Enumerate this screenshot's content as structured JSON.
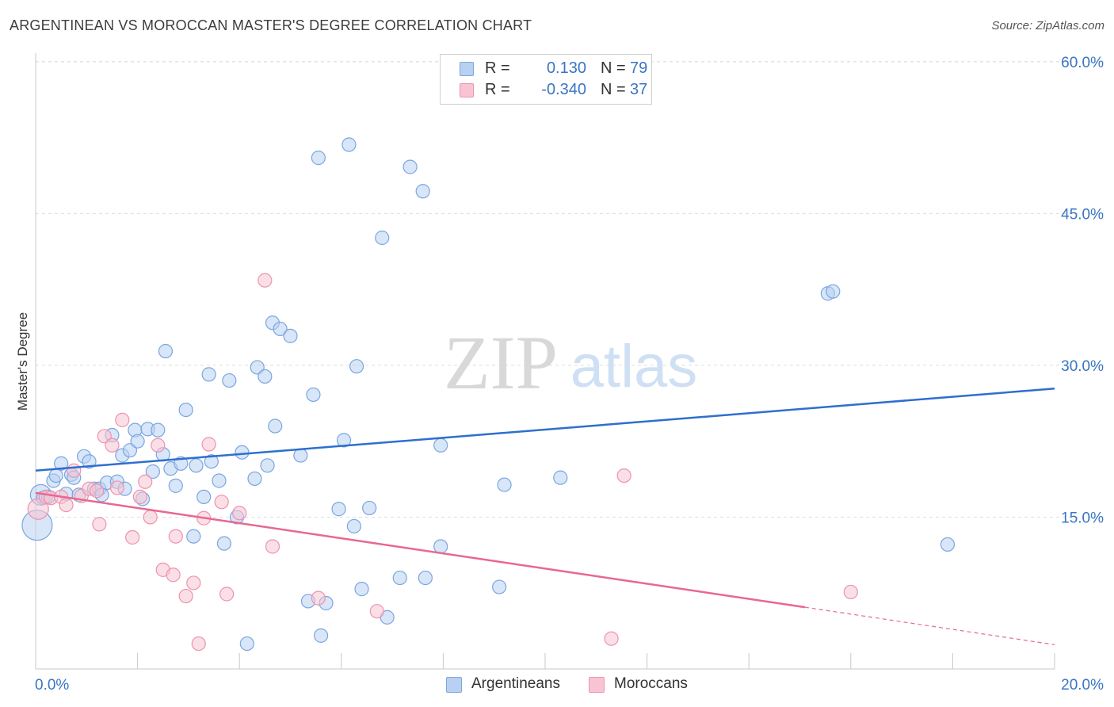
{
  "title": "ARGENTINEAN VS MOROCCAN MASTER'S DEGREE CORRELATION CHART",
  "source": "Source: ZipAtlas.com",
  "watermark": {
    "zip": "ZIP",
    "atlas": "atlas"
  },
  "legend": {
    "series1": {
      "r_label": "R =",
      "r_value": "0.130",
      "n_label": "N =",
      "n_value": "79"
    },
    "series2": {
      "r_label": "R =",
      "r_value": "-0.340",
      "n_label": "N =",
      "n_value": "37"
    }
  },
  "bottom_legend": {
    "series1": "Argentineans",
    "series2": "Moroccans"
  },
  "colors": {
    "blue_fill": "#b8d1f2",
    "blue_stroke": "#7aa6e0",
    "blue_line": "#2e6fce",
    "pink_fill": "#f8c4d4",
    "pink_stroke": "#ee92ae",
    "pink_line": "#e8688f",
    "axis_label": "#3a75c4",
    "grid": "#dedede"
  },
  "chart_data": {
    "type": "scatter",
    "title": "ARGENTINEAN VS MOROCCAN MASTER'S DEGREE CORRELATION CHART",
    "xlabel": "",
    "ylabel": "Master's Degree",
    "xlim": [
      0,
      20
    ],
    "ylim": [
      0,
      62
    ],
    "x_tick_labels": [
      {
        "value": 0,
        "label": "0.0%"
      },
      {
        "value": 20,
        "label": "20.0%"
      }
    ],
    "y_tick_labels": [
      {
        "value": 15,
        "label": "15.0%"
      },
      {
        "value": 30,
        "label": "30.0%"
      },
      {
        "value": 45,
        "label": "45.0%"
      },
      {
        "value": 60,
        "label": "60.0%"
      }
    ],
    "series": [
      {
        "name": "Argentineans",
        "r": 0.13,
        "n": 79,
        "trend": {
          "x0": 0,
          "y0": 19.6,
          "x1": 20,
          "y1": 27.7
        },
        "points": [
          [
            0.03,
            14.2,
            3
          ],
          [
            0.1,
            17.2,
            2
          ],
          [
            0.15,
            16.9,
            1
          ],
          [
            0.25,
            17.0,
            1
          ],
          [
            0.35,
            18.6,
            1
          ],
          [
            0.4,
            19.1,
            1
          ],
          [
            0.5,
            20.3,
            1
          ],
          [
            0.6,
            17.3,
            1
          ],
          [
            0.7,
            19.2,
            1
          ],
          [
            0.75,
            18.9,
            1
          ],
          [
            0.85,
            17.2,
            1
          ],
          [
            0.95,
            21.0,
            1
          ],
          [
            1.05,
            20.5,
            1
          ],
          [
            1.15,
            17.8,
            1
          ],
          [
            1.25,
            17.8,
            1
          ],
          [
            1.3,
            17.2,
            1
          ],
          [
            1.4,
            18.4,
            1
          ],
          [
            1.5,
            23.1,
            1
          ],
          [
            1.6,
            18.5,
            1
          ],
          [
            1.7,
            21.1,
            1
          ],
          [
            1.75,
            17.8,
            1
          ],
          [
            1.85,
            21.6,
            1
          ],
          [
            1.95,
            23.6,
            1
          ],
          [
            2.0,
            22.5,
            1
          ],
          [
            2.1,
            16.8,
            1
          ],
          [
            2.2,
            23.7,
            1
          ],
          [
            2.3,
            19.5,
            1
          ],
          [
            2.4,
            23.6,
            1
          ],
          [
            2.5,
            21.2,
            1
          ],
          [
            2.55,
            31.4,
            1
          ],
          [
            2.65,
            19.8,
            1
          ],
          [
            2.75,
            18.1,
            1
          ],
          [
            2.85,
            20.3,
            1
          ],
          [
            2.95,
            25.6,
            1
          ],
          [
            3.1,
            13.1,
            1
          ],
          [
            3.15,
            20.1,
            1
          ],
          [
            3.3,
            17.0,
            1
          ],
          [
            3.4,
            29.1,
            1
          ],
          [
            3.45,
            20.5,
            1
          ],
          [
            3.6,
            18.6,
            1
          ],
          [
            3.7,
            12.4,
            1
          ],
          [
            3.8,
            28.5,
            1
          ],
          [
            3.95,
            15.0,
            1
          ],
          [
            4.05,
            21.4,
            1
          ],
          [
            4.15,
            2.5,
            1
          ],
          [
            4.3,
            18.8,
            1
          ],
          [
            4.35,
            29.8,
            1
          ],
          [
            4.5,
            28.9,
            1
          ],
          [
            4.55,
            20.1,
            1
          ],
          [
            4.65,
            34.2,
            1
          ],
          [
            4.7,
            24.0,
            1
          ],
          [
            4.8,
            33.6,
            1
          ],
          [
            5.0,
            32.9,
            1
          ],
          [
            5.2,
            21.1,
            1
          ],
          [
            5.35,
            6.7,
            1
          ],
          [
            5.45,
            27.1,
            1
          ],
          [
            5.55,
            50.5,
            1
          ],
          [
            5.6,
            3.3,
            1
          ],
          [
            5.7,
            6.5,
            1
          ],
          [
            5.95,
            15.8,
            1
          ],
          [
            6.05,
            22.6,
            1
          ],
          [
            6.15,
            51.8,
            1
          ],
          [
            6.25,
            14.1,
            1
          ],
          [
            6.3,
            29.9,
            1
          ],
          [
            6.4,
            7.9,
            1
          ],
          [
            6.55,
            15.9,
            1
          ],
          [
            6.8,
            42.6,
            1
          ],
          [
            6.9,
            5.1,
            1
          ],
          [
            7.15,
            9.0,
            1
          ],
          [
            7.35,
            49.6,
            1
          ],
          [
            7.6,
            47.2,
            1
          ],
          [
            7.65,
            9.0,
            1
          ],
          [
            7.95,
            22.1,
            1
          ],
          [
            7.95,
            12.1,
            1
          ],
          [
            9.1,
            8.1,
            1
          ],
          [
            9.2,
            18.2,
            1
          ],
          [
            10.3,
            18.9,
            1
          ],
          [
            15.55,
            37.1,
            1
          ],
          [
            15.65,
            37.3,
            1
          ],
          [
            17.9,
            12.3,
            1
          ]
        ]
      },
      {
        "name": "Moroccans",
        "r": -0.34,
        "n": 37,
        "trend": {
          "x0": 0,
          "y0": 17.4,
          "x1": 15.1,
          "y1": 6.1,
          "dash_to_x": 20,
          "dash_to_y": 2.4
        },
        "points": [
          [
            0.05,
            15.8,
            2
          ],
          [
            0.2,
            17.0,
            1
          ],
          [
            0.3,
            16.9,
            1
          ],
          [
            0.5,
            17.0,
            1
          ],
          [
            0.6,
            16.2,
            1
          ],
          [
            0.75,
            19.6,
            1
          ],
          [
            0.9,
            17.1,
            1
          ],
          [
            1.05,
            17.8,
            1
          ],
          [
            1.2,
            17.6,
            1
          ],
          [
            1.25,
            14.3,
            1
          ],
          [
            1.35,
            23.0,
            1
          ],
          [
            1.5,
            22.1,
            1
          ],
          [
            1.6,
            17.9,
            1
          ],
          [
            1.7,
            24.6,
            1
          ],
          [
            1.9,
            13.0,
            1
          ],
          [
            2.05,
            17.0,
            1
          ],
          [
            2.15,
            18.5,
            1
          ],
          [
            2.25,
            15.0,
            1
          ],
          [
            2.4,
            22.1,
            1
          ],
          [
            2.5,
            9.8,
            1
          ],
          [
            2.7,
            9.3,
            1
          ],
          [
            2.75,
            13.1,
            1
          ],
          [
            2.95,
            7.2,
            1
          ],
          [
            3.1,
            8.5,
            1
          ],
          [
            3.2,
            2.5,
            1
          ],
          [
            3.3,
            14.9,
            1
          ],
          [
            3.4,
            22.2,
            1
          ],
          [
            3.65,
            16.5,
            1
          ],
          [
            3.75,
            7.4,
            1
          ],
          [
            4.0,
            15.4,
            1
          ],
          [
            4.5,
            38.4,
            1
          ],
          [
            4.65,
            12.1,
            1
          ],
          [
            5.55,
            7.0,
            1
          ],
          [
            6.7,
            5.7,
            1
          ],
          [
            11.3,
            3.0,
            1
          ],
          [
            11.55,
            19.1,
            1
          ],
          [
            16.0,
            7.6,
            1
          ]
        ]
      }
    ]
  }
}
